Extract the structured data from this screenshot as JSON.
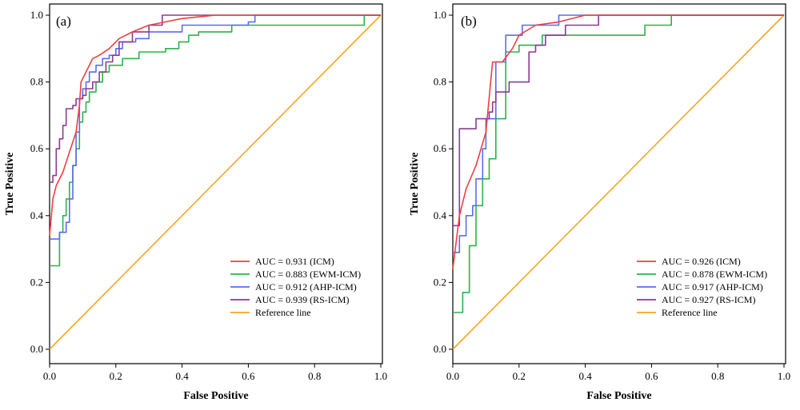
{
  "chart_data": [
    {
      "type": "line",
      "panel_label": "(a)",
      "xlabel": "False Positive",
      "ylabel": "True Positive",
      "xlim": [
        0,
        1
      ],
      "ylim": [
        0,
        1
      ],
      "x_ticks": [
        "0.0",
        "0.2",
        "0.4",
        "0.6",
        "0.8",
        "1.0"
      ],
      "y_ticks": [
        "0.0",
        "0.2",
        "0.4",
        "0.6",
        "0.8",
        "1.0"
      ],
      "legend_position": "bottom-right",
      "series": [
        {
          "name": "AUC = 0.931 (ICM)",
          "color": "#ee3f3f",
          "points": [
            [
              0,
              0.34
            ],
            [
              0.01,
              0.45
            ],
            [
              0.02,
              0.49
            ],
            [
              0.04,
              0.53
            ],
            [
              0.06,
              0.59
            ],
            [
              0.08,
              0.65
            ],
            [
              0.09,
              0.73
            ],
            [
              0.095,
              0.8
            ],
            [
              0.11,
              0.83
            ],
            [
              0.13,
              0.87
            ],
            [
              0.15,
              0.88
            ],
            [
              0.18,
              0.9
            ],
            [
              0.21,
              0.93
            ],
            [
              0.25,
              0.95
            ],
            [
              0.3,
              0.97
            ],
            [
              0.35,
              0.98
            ],
            [
              0.4,
              0.99
            ],
            [
              0.5,
              1.0
            ],
            [
              1.0,
              1.0
            ]
          ]
        },
        {
          "name": "AUC = 0.883 (EWM-ICM)",
          "color": "#2bb34a",
          "points": [
            [
              0,
              0.25
            ],
            [
              0.03,
              0.25
            ],
            [
              0.03,
              0.35
            ],
            [
              0.04,
              0.35
            ],
            [
              0.04,
              0.4
            ],
            [
              0.05,
              0.4
            ],
            [
              0.05,
              0.45
            ],
            [
              0.06,
              0.45
            ],
            [
              0.06,
              0.5
            ],
            [
              0.07,
              0.5
            ],
            [
              0.07,
              0.55
            ],
            [
              0.08,
              0.55
            ],
            [
              0.08,
              0.6
            ],
            [
              0.09,
              0.6
            ],
            [
              0.09,
              0.68
            ],
            [
              0.1,
              0.68
            ],
            [
              0.1,
              0.71
            ],
            [
              0.11,
              0.71
            ],
            [
              0.11,
              0.74
            ],
            [
              0.12,
              0.74
            ],
            [
              0.12,
              0.77
            ],
            [
              0.14,
              0.77
            ],
            [
              0.14,
              0.8
            ],
            [
              0.16,
              0.8
            ],
            [
              0.16,
              0.83
            ],
            [
              0.18,
              0.83
            ],
            [
              0.18,
              0.85
            ],
            [
              0.22,
              0.85
            ],
            [
              0.22,
              0.87
            ],
            [
              0.27,
              0.87
            ],
            [
              0.27,
              0.89
            ],
            [
              0.35,
              0.89
            ],
            [
              0.35,
              0.9
            ],
            [
              0.39,
              0.9
            ],
            [
              0.39,
              0.92
            ],
            [
              0.42,
              0.92
            ],
            [
              0.42,
              0.94
            ],
            [
              0.45,
              0.94
            ],
            [
              0.45,
              0.95
            ],
            [
              0.55,
              0.95
            ],
            [
              0.55,
              0.97
            ],
            [
              0.95,
              0.97
            ],
            [
              0.95,
              1.0
            ],
            [
              1.0,
              1.0
            ]
          ]
        },
        {
          "name": "AUC = 0.912 (AHP-ICM)",
          "color": "#5a6cf0",
          "points": [
            [
              0,
              0.33
            ],
            [
              0.03,
              0.33
            ],
            [
              0.03,
              0.35
            ],
            [
              0.05,
              0.35
            ],
            [
              0.05,
              0.38
            ],
            [
              0.06,
              0.38
            ],
            [
              0.06,
              0.45
            ],
            [
              0.07,
              0.45
            ],
            [
              0.07,
              0.55
            ],
            [
              0.08,
              0.55
            ],
            [
              0.08,
              0.65
            ],
            [
              0.09,
              0.65
            ],
            [
              0.09,
              0.75
            ],
            [
              0.1,
              0.75
            ],
            [
              0.1,
              0.78
            ],
            [
              0.11,
              0.78
            ],
            [
              0.11,
              0.8
            ],
            [
              0.12,
              0.8
            ],
            [
              0.12,
              0.83
            ],
            [
              0.14,
              0.83
            ],
            [
              0.14,
              0.85
            ],
            [
              0.16,
              0.85
            ],
            [
              0.16,
              0.87
            ],
            [
              0.18,
              0.87
            ],
            [
              0.18,
              0.88
            ],
            [
              0.2,
              0.88
            ],
            [
              0.2,
              0.9
            ],
            [
              0.22,
              0.9
            ],
            [
              0.22,
              0.92
            ],
            [
              0.26,
              0.92
            ],
            [
              0.26,
              0.93
            ],
            [
              0.3,
              0.93
            ],
            [
              0.3,
              0.95
            ],
            [
              0.4,
              0.95
            ],
            [
              0.4,
              0.97
            ],
            [
              0.6,
              0.97
            ],
            [
              0.6,
              0.98
            ],
            [
              0.62,
              0.98
            ],
            [
              0.62,
              1.0
            ],
            [
              1.0,
              1.0
            ]
          ]
        },
        {
          "name": "AUC = 0.939 (RS-ICM)",
          "color": "#8e3a91",
          "points": [
            [
              0,
              0.5
            ],
            [
              0.01,
              0.5
            ],
            [
              0.01,
              0.52
            ],
            [
              0.02,
              0.52
            ],
            [
              0.02,
              0.6
            ],
            [
              0.03,
              0.6
            ],
            [
              0.03,
              0.63
            ],
            [
              0.04,
              0.63
            ],
            [
              0.04,
              0.67
            ],
            [
              0.05,
              0.67
            ],
            [
              0.05,
              0.72
            ],
            [
              0.07,
              0.72
            ],
            [
              0.07,
              0.73
            ],
            [
              0.08,
              0.73
            ],
            [
              0.08,
              0.75
            ],
            [
              0.1,
              0.75
            ],
            [
              0.1,
              0.76
            ],
            [
              0.11,
              0.76
            ],
            [
              0.11,
              0.78
            ],
            [
              0.13,
              0.78
            ],
            [
              0.13,
              0.8
            ],
            [
              0.15,
              0.8
            ],
            [
              0.15,
              0.83
            ],
            [
              0.17,
              0.83
            ],
            [
              0.17,
              0.86
            ],
            [
              0.19,
              0.86
            ],
            [
              0.19,
              0.88
            ],
            [
              0.21,
              0.88
            ],
            [
              0.21,
              0.92
            ],
            [
              0.25,
              0.92
            ],
            [
              0.25,
              0.95
            ],
            [
              0.3,
              0.95
            ],
            [
              0.3,
              0.97
            ],
            [
              0.34,
              0.97
            ],
            [
              0.34,
              1.0
            ],
            [
              1.0,
              1.0
            ]
          ]
        },
        {
          "name": "Reference line",
          "color": "#f6a623",
          "points": [
            [
              0,
              0
            ],
            [
              1,
              1
            ]
          ]
        }
      ]
    },
    {
      "type": "line",
      "panel_label": "(b)",
      "xlabel": "False Positive",
      "ylabel": "True Positive",
      "xlim": [
        0,
        1
      ],
      "ylim": [
        0,
        1
      ],
      "x_ticks": [
        "0.0",
        "0.2",
        "0.4",
        "0.6",
        "0.8",
        "1.0"
      ],
      "y_ticks": [
        "0.0",
        "0.2",
        "0.4",
        "0.6",
        "0.8",
        "1.0"
      ],
      "legend_position": "bottom-right",
      "series": [
        {
          "name": "AUC = 0.926 (ICM)",
          "color": "#ee3f3f",
          "points": [
            [
              0,
              0.24
            ],
            [
              0.02,
              0.4
            ],
            [
              0.04,
              0.48
            ],
            [
              0.07,
              0.55
            ],
            [
              0.1,
              0.65
            ],
            [
              0.12,
              0.86
            ],
            [
              0.15,
              0.86
            ],
            [
              0.18,
              0.9
            ],
            [
              0.2,
              0.94
            ],
            [
              0.25,
              0.97
            ],
            [
              0.32,
              0.98
            ],
            [
              0.4,
              1.0
            ],
            [
              1.0,
              1.0
            ]
          ]
        },
        {
          "name": "AUC = 0.878 (EWM-ICM)",
          "color": "#2bb34a",
          "points": [
            [
              0,
              0.11
            ],
            [
              0.03,
              0.11
            ],
            [
              0.03,
              0.17
            ],
            [
              0.05,
              0.17
            ],
            [
              0.05,
              0.31
            ],
            [
              0.07,
              0.31
            ],
            [
              0.07,
              0.43
            ],
            [
              0.09,
              0.43
            ],
            [
              0.09,
              0.51
            ],
            [
              0.11,
              0.51
            ],
            [
              0.11,
              0.57
            ],
            [
              0.13,
              0.57
            ],
            [
              0.13,
              0.69
            ],
            [
              0.16,
              0.69
            ],
            [
              0.16,
              0.89
            ],
            [
              0.2,
              0.89
            ],
            [
              0.2,
              0.91
            ],
            [
              0.27,
              0.91
            ],
            [
              0.27,
              0.94
            ],
            [
              0.58,
              0.94
            ],
            [
              0.58,
              0.97
            ],
            [
              0.66,
              0.97
            ],
            [
              0.66,
              1.0
            ],
            [
              1.0,
              1.0
            ]
          ]
        },
        {
          "name": "AUC = 0.917 (AHP-ICM)",
          "color": "#5a6cf0",
          "points": [
            [
              0,
              0.29
            ],
            [
              0.02,
              0.29
            ],
            [
              0.02,
              0.34
            ],
            [
              0.04,
              0.34
            ],
            [
              0.04,
              0.4
            ],
            [
              0.06,
              0.4
            ],
            [
              0.06,
              0.43
            ],
            [
              0.07,
              0.43
            ],
            [
              0.07,
              0.51
            ],
            [
              0.09,
              0.51
            ],
            [
              0.09,
              0.6
            ],
            [
              0.1,
              0.6
            ],
            [
              0.1,
              0.69
            ],
            [
              0.13,
              0.69
            ],
            [
              0.13,
              0.86
            ],
            [
              0.16,
              0.86
            ],
            [
              0.16,
              0.94
            ],
            [
              0.21,
              0.94
            ],
            [
              0.21,
              0.97
            ],
            [
              0.32,
              0.97
            ],
            [
              0.32,
              1.0
            ],
            [
              1.0,
              1.0
            ]
          ]
        },
        {
          "name": "AUC = 0.927 (RS-ICM)",
          "color": "#8e3a91",
          "points": [
            [
              0,
              0.37
            ],
            [
              0.02,
              0.37
            ],
            [
              0.02,
              0.66
            ],
            [
              0.07,
              0.66
            ],
            [
              0.07,
              0.69
            ],
            [
              0.11,
              0.69
            ],
            [
              0.11,
              0.71
            ],
            [
              0.12,
              0.71
            ],
            [
              0.12,
              0.74
            ],
            [
              0.13,
              0.74
            ],
            [
              0.13,
              0.77
            ],
            [
              0.17,
              0.77
            ],
            [
              0.17,
              0.8
            ],
            [
              0.23,
              0.8
            ],
            [
              0.23,
              0.89
            ],
            [
              0.25,
              0.89
            ],
            [
              0.25,
              0.91
            ],
            [
              0.28,
              0.91
            ],
            [
              0.28,
              0.94
            ],
            [
              0.34,
              0.94
            ],
            [
              0.34,
              0.97
            ],
            [
              0.44,
              0.97
            ],
            [
              0.44,
              1.0
            ],
            [
              1.0,
              1.0
            ]
          ]
        },
        {
          "name": "Reference line",
          "color": "#f6a623",
          "points": [
            [
              0,
              0
            ],
            [
              1,
              1
            ]
          ]
        }
      ]
    }
  ]
}
